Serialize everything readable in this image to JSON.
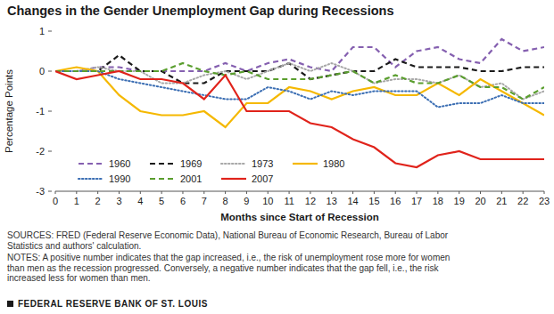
{
  "chart_data": {
    "type": "line",
    "title": "Changes in the Gender Unemployment Gap during Recessions",
    "x_label": "Months since Start of Recession",
    "y_label": "Percentage Points",
    "x": [
      0,
      1,
      2,
      3,
      4,
      5,
      6,
      7,
      8,
      9,
      10,
      11,
      12,
      13,
      14,
      15,
      16,
      17,
      18,
      19,
      20,
      21,
      22,
      23
    ],
    "xlim": [
      0,
      23
    ],
    "xticks": [
      0,
      1,
      2,
      3,
      4,
      5,
      6,
      7,
      8,
      9,
      10,
      11,
      12,
      13,
      14,
      15,
      16,
      17,
      18,
      19,
      20,
      21,
      22,
      23
    ],
    "ylim": [
      -3,
      1
    ],
    "yticks": [
      1,
      0,
      -1,
      -2,
      -3
    ],
    "grid": false,
    "legend": "lower left",
    "series": [
      {
        "name": "1960",
        "color": "#8560b0",
        "line_style": "dashed",
        "values": [
          0,
          0,
          0.1,
          0.1,
          0,
          0,
          0,
          0,
          0.2,
          0,
          0.2,
          0.3,
          0.1,
          0,
          0.6,
          0.6,
          0.1,
          0.5,
          0.6,
          0.3,
          0.2,
          0.8,
          0.5,
          0.6
        ]
      },
      {
        "name": "1969",
        "color": "#1a1a1a",
        "line_style": "dashed",
        "values": [
          0,
          0,
          0,
          0.4,
          0,
          0,
          -0.3,
          -0.3,
          0,
          0,
          0,
          0.2,
          -0.2,
          -0.1,
          0,
          0,
          0.3,
          0.1,
          0.1,
          0.1,
          0,
          0,
          0.1,
          0.1
        ]
      },
      {
        "name": "1973",
        "color": "#a8a8a8",
        "line_style": "dotted",
        "values": [
          0,
          0,
          0.1,
          0,
          0,
          -0.3,
          -0.3,
          -0.1,
          0,
          -0.2,
          0,
          0.2,
          0,
          0.2,
          0,
          -0.3,
          -0.2,
          -0.2,
          -0.3,
          -0.1,
          -0.4,
          -0.3,
          -0.7,
          -0.5
        ]
      },
      {
        "name": "1980",
        "color": "#f5b800",
        "line_style": "solid",
        "values": [
          0,
          0.1,
          0,
          -0.6,
          -1,
          -1.1,
          -1.1,
          -1,
          -1.4,
          -0.8,
          -0.8,
          -0.4,
          -0.5,
          -0.7,
          -0.5,
          -0.4,
          -0.6,
          -0.6,
          -0.3,
          -0.6,
          -0.2,
          -0.5,
          -0.8,
          -1.1
        ]
      },
      {
        "name": "1990",
        "color": "#3b6eb3",
        "line_style": "dotted",
        "values": [
          0,
          0,
          0,
          -0.2,
          -0.3,
          -0.4,
          -0.5,
          -0.6,
          -0.7,
          -0.7,
          -0.4,
          -0.5,
          -0.7,
          -0.5,
          -0.6,
          -0.5,
          -0.5,
          -0.5,
          -0.9,
          -0.8,
          -0.8,
          -0.6,
          -0.8,
          -0.8
        ]
      },
      {
        "name": "2001",
        "color": "#5a9e2e",
        "line_style": "dashed",
        "values": [
          0,
          0,
          0,
          0,
          0,
          0,
          0.2,
          0,
          -0.1,
          0,
          -0.2,
          -0.2,
          -0.2,
          -0.1,
          0,
          -0.3,
          -0.1,
          -0.3,
          -0.3,
          -0.1,
          -0.4,
          -0.4,
          -0.7,
          -0.4
        ]
      },
      {
        "name": "2007",
        "color": "#e0231b",
        "line_style": "solid",
        "values": [
          0,
          -0.2,
          -0.1,
          0,
          -0.2,
          -0.2,
          -0.3,
          -0.7,
          -0.1,
          -1,
          -1,
          -1,
          -1.3,
          -1.4,
          -1.7,
          -1.9,
          -2.3,
          -2.4,
          -2.1,
          -2,
          -2.2,
          -2.2,
          -2.2,
          -2.2
        ]
      }
    ],
    "sources": [
      "SOURCES: FRED (Federal Reserve Economic Data), National Bureau of Economic Research, Bureau of Labor",
      "Statistics and authors' calculation."
    ],
    "notes": [
      "NOTES: A positive number indicates that the gap increased, i.e., the risk of unemployment rose more for women",
      "than men as the recession progressed. Conversely, a negative number indicates that the gap fell, i.e., the risk",
      "increased less for women than men."
    ],
    "footer": "FEDERAL RESERVE BANK OF ST. LOUIS"
  }
}
